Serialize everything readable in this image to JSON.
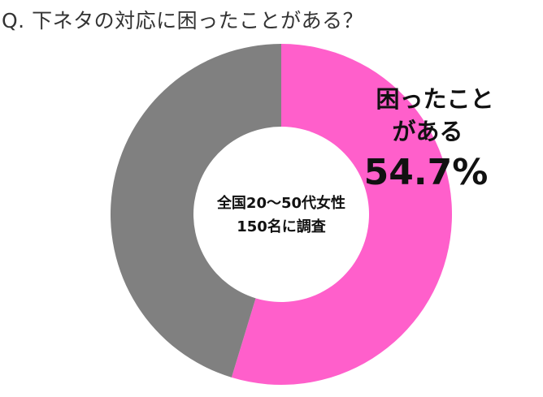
{
  "question": "Q.  下ネタの対応に困ったことがある？",
  "center": {
    "line1": "全国20～50代女性",
    "line2": "150名に調査"
  },
  "colors": {
    "yes": "#ff5fcb",
    "other": "#808080"
  },
  "chart_data": {
    "type": "pie",
    "title": "Q.  下ネタの対応に困ったことがある？",
    "categories": [
      "困ったことがある",
      ""
    ],
    "values": [
      54.7,
      45.3
    ],
    "unit": "%",
    "donut": true,
    "slice_labels": [
      {
        "line1": "困ったこと",
        "line2": "がある",
        "value": "54.7%"
      },
      null
    ]
  }
}
